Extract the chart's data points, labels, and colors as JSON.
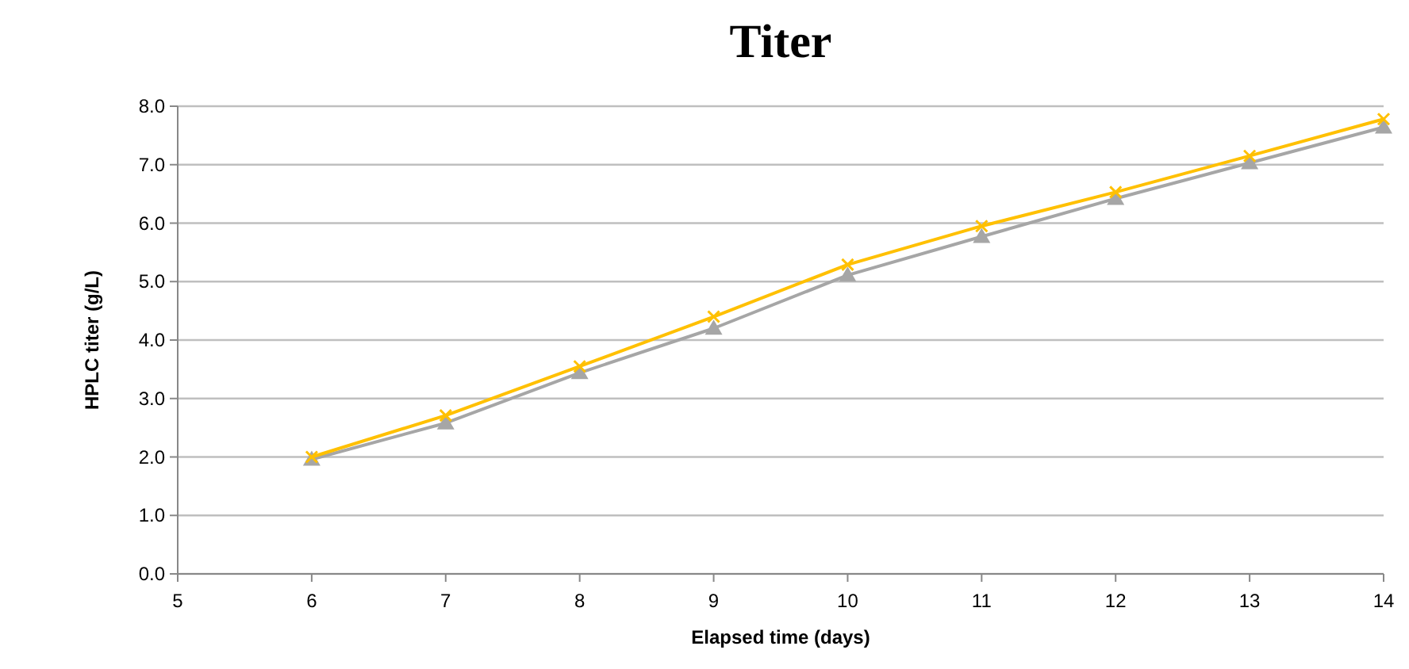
{
  "chart_data": {
    "type": "line",
    "title": "Titer",
    "xlabel": "Elapsed time (days)",
    "ylabel": "HPLC titer (g/L)",
    "x": [
      6,
      7,
      8,
      9,
      10,
      11,
      12,
      13,
      14
    ],
    "series": [
      {
        "color": "#a6a6a6",
        "marker": "triangle",
        "values": [
          1.96,
          2.58,
          3.44,
          4.2,
          5.11,
          5.77,
          6.42,
          7.03,
          7.64
        ]
      },
      {
        "color": "#ffc000",
        "marker": "cross",
        "values": [
          2.0,
          2.71,
          3.55,
          4.4,
          5.29,
          5.95,
          6.53,
          7.15,
          7.78
        ]
      }
    ],
    "xlim": [
      5,
      14
    ],
    "xticks": [
      5,
      6,
      7,
      8,
      9,
      10,
      11,
      12,
      13,
      14
    ],
    "ylim": [
      0,
      8
    ],
    "yticks": [
      {
        "value": 0,
        "label": "0.0"
      },
      {
        "value": 1,
        "label": "1.0"
      },
      {
        "value": 2,
        "label": "2.0"
      },
      {
        "value": 3,
        "label": "3.0"
      },
      {
        "value": 4,
        "label": "4.0"
      },
      {
        "value": 5,
        "label": "5.0"
      },
      {
        "value": 6,
        "label": "6.0"
      },
      {
        "value": 7,
        "label": "7.0"
      },
      {
        "value": 8,
        "label": "8.0"
      }
    ],
    "grid": "y"
  }
}
